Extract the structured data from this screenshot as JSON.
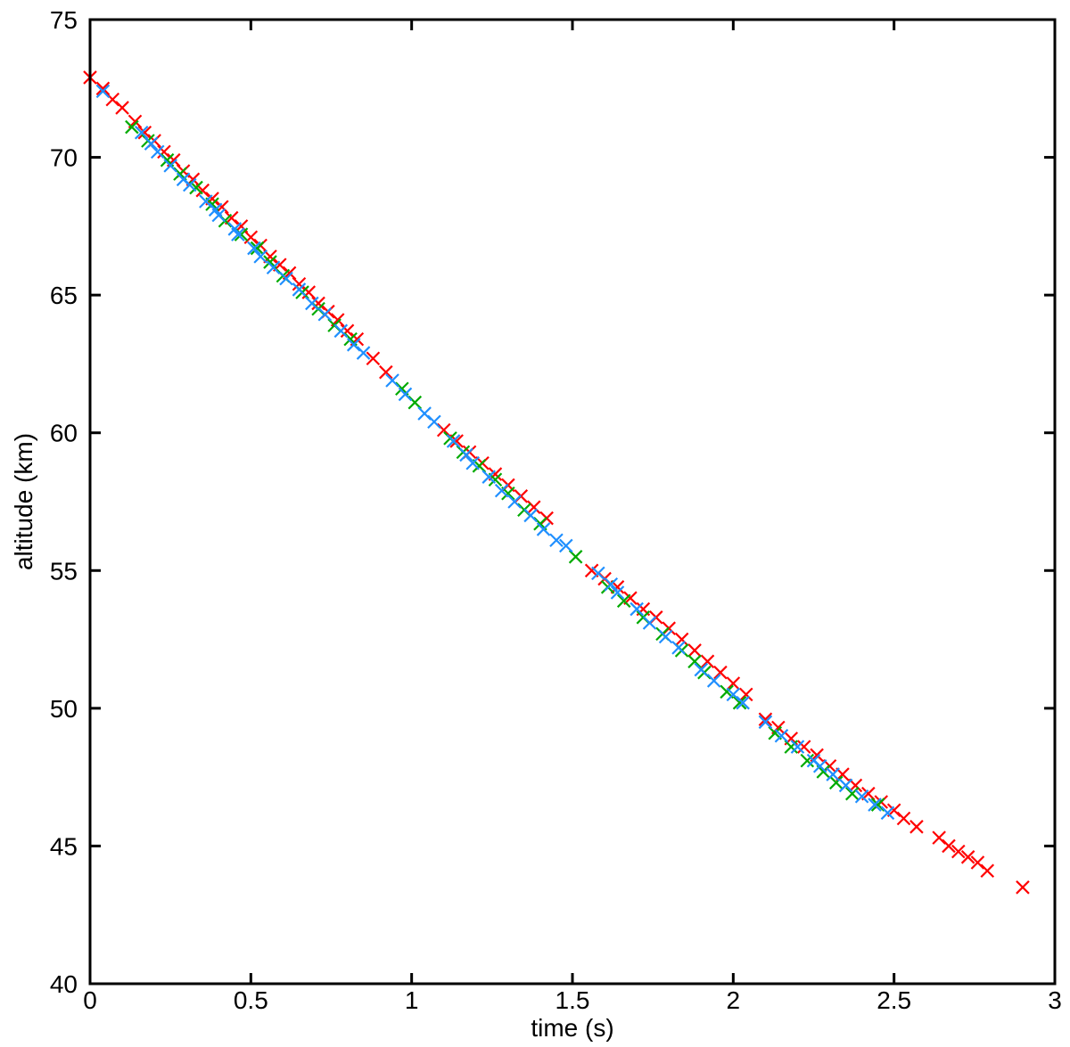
{
  "chart_data": {
    "type": "scatter",
    "title": "",
    "xlabel": "time (s)",
    "ylabel": "altitude (km)",
    "xlim": [
      0,
      3
    ],
    "ylim": [
      40,
      75
    ],
    "xticks": [
      0,
      0.5,
      1,
      1.5,
      2,
      2.5,
      3
    ],
    "xtick_labels": [
      "0",
      "0.5",
      "1",
      "1.5",
      "2",
      "2.5",
      "3"
    ],
    "yticks": [
      40,
      45,
      50,
      55,
      60,
      65,
      70,
      75
    ],
    "ytick_labels": [
      "40",
      "45",
      "50",
      "55",
      "60",
      "65",
      "70",
      "75"
    ],
    "grid": false,
    "marker": "x",
    "series": [
      {
        "color": "#ff0000",
        "x": [
          0.0,
          0.04,
          0.07,
          0.1,
          0.14,
          0.17,
          0.2,
          0.23,
          0.26,
          0.29,
          0.32,
          0.35,
          0.38,
          0.41,
          0.44,
          0.47,
          0.5,
          0.53,
          0.56,
          0.59,
          0.62,
          0.65,
          0.68,
          0.71,
          0.74,
          0.77,
          0.8,
          0.83,
          0.88,
          0.92,
          1.1,
          1.14,
          1.18,
          1.22,
          1.26,
          1.3,
          1.34,
          1.38,
          1.42,
          1.56,
          1.6,
          1.64,
          1.68,
          1.72,
          1.76,
          1.8,
          1.84,
          1.88,
          1.92,
          1.96,
          2.0,
          2.04,
          2.1,
          2.14,
          2.18,
          2.22,
          2.26,
          2.3,
          2.34,
          2.38,
          2.42,
          2.46,
          2.5,
          2.53,
          2.57,
          2.64,
          2.67,
          2.7,
          2.73,
          2.76,
          2.79,
          2.9
        ],
        "y": [
          72.9,
          72.5,
          72.1,
          71.8,
          71.3,
          70.9,
          70.6,
          70.2,
          69.9,
          69.5,
          69.2,
          68.8,
          68.5,
          68.2,
          67.8,
          67.5,
          67.1,
          66.8,
          66.4,
          66.1,
          65.8,
          65.4,
          65.1,
          64.7,
          64.4,
          64.1,
          63.7,
          63.4,
          62.7,
          62.2,
          60.1,
          59.7,
          59.3,
          58.9,
          58.5,
          58.1,
          57.7,
          57.3,
          56.9,
          55.0,
          54.7,
          54.4,
          54.0,
          53.6,
          53.3,
          52.9,
          52.5,
          52.1,
          51.7,
          51.3,
          50.9,
          50.5,
          49.6,
          49.3,
          48.9,
          48.6,
          48.3,
          47.9,
          47.6,
          47.2,
          46.9,
          46.6,
          46.3,
          46.0,
          45.7,
          45.3,
          45.0,
          44.8,
          44.6,
          44.4,
          44.1,
          43.5
        ]
      },
      {
        "color": "#00aa00",
        "x": [
          0.13,
          0.18,
          0.24,
          0.28,
          0.33,
          0.38,
          0.42,
          0.47,
          0.52,
          0.56,
          0.6,
          0.66,
          0.71,
          0.76,
          0.81,
          0.97,
          1.01,
          1.12,
          1.16,
          1.21,
          1.26,
          1.3,
          1.35,
          1.4,
          1.51,
          1.61,
          1.66,
          1.72,
          1.78,
          1.84,
          1.88,
          1.91,
          1.98,
          2.02,
          2.13,
          2.18,
          2.23,
          2.28,
          2.32,
          2.37,
          2.45
        ],
        "y": [
          71.1,
          70.6,
          69.9,
          69.4,
          68.9,
          68.3,
          67.7,
          67.2,
          66.7,
          66.2,
          65.7,
          65.1,
          64.5,
          63.9,
          63.4,
          61.6,
          61.1,
          59.8,
          59.3,
          58.8,
          58.3,
          57.8,
          57.2,
          56.7,
          55.5,
          54.4,
          53.9,
          53.3,
          52.7,
          52.1,
          51.7,
          51.3,
          50.6,
          50.2,
          49.1,
          48.6,
          48.1,
          47.7,
          47.3,
          46.9,
          46.5
        ]
      },
      {
        "color": "#1f8fff",
        "x": [
          0.04,
          0.16,
          0.19,
          0.21,
          0.25,
          0.29,
          0.31,
          0.36,
          0.39,
          0.4,
          0.45,
          0.46,
          0.51,
          0.53,
          0.57,
          0.61,
          0.65,
          0.69,
          0.73,
          0.78,
          0.82,
          0.85,
          0.94,
          0.98,
          1.04,
          1.07,
          1.13,
          1.17,
          1.19,
          1.24,
          1.28,
          1.32,
          1.37,
          1.41,
          1.45,
          1.48,
          1.58,
          1.62,
          1.64,
          1.7,
          1.74,
          1.79,
          1.83,
          1.9,
          1.94,
          2.0,
          2.03,
          2.1,
          2.15,
          2.2,
          2.25,
          2.27,
          2.31,
          2.35,
          2.4,
          2.44,
          2.48
        ],
        "y": [
          72.4,
          70.9,
          70.5,
          70.2,
          69.7,
          69.2,
          69.0,
          68.4,
          68.1,
          67.9,
          67.4,
          67.2,
          66.7,
          66.4,
          66.0,
          65.6,
          65.2,
          64.7,
          64.3,
          63.7,
          63.2,
          62.9,
          61.9,
          61.4,
          60.7,
          60.4,
          59.7,
          59.2,
          58.9,
          58.4,
          57.9,
          57.5,
          57.0,
          56.5,
          56.1,
          55.9,
          54.9,
          54.5,
          54.2,
          53.6,
          53.1,
          52.6,
          52.2,
          51.4,
          51.0,
          50.5,
          50.2,
          49.5,
          49.0,
          48.6,
          48.1,
          47.9,
          47.6,
          47.2,
          46.8,
          46.5,
          46.2
        ]
      }
    ]
  }
}
